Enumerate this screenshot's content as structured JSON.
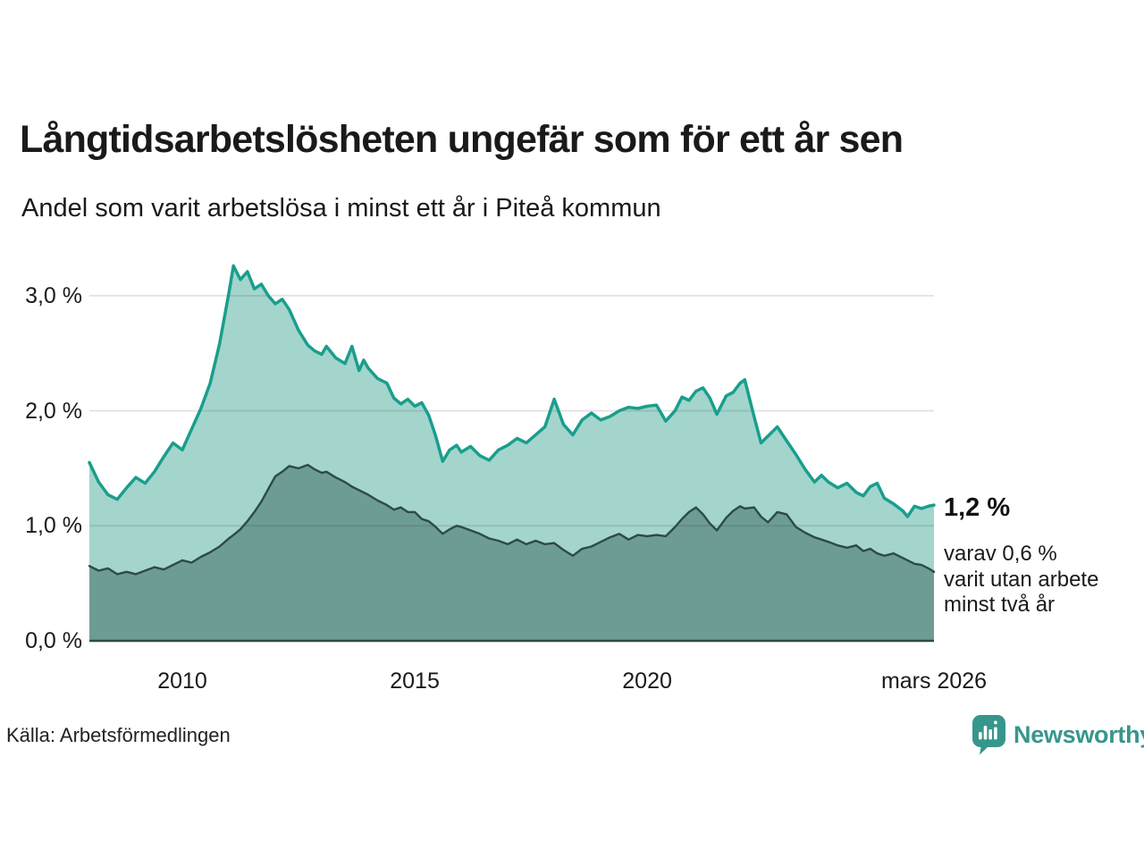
{
  "header": {
    "title": "Långtidsarbetslösheten ungefär som för ett år sen",
    "subtitle": "Andel som varit arbetslösa i minst ett år i Piteå kommun"
  },
  "annotation": {
    "value_label": "1,2 %",
    "detail": "varav 0,6 %\nvarit utan arbete\nminst två år"
  },
  "footer": {
    "source": "Källa: Arbetsförmedlingen",
    "brand": "Newsworthy"
  },
  "colors": {
    "line_total": "#1a9e8c",
    "fill_total": "#a3d5cd",
    "line_two_years": "#2d4b46",
    "fill_two_years": "#6d9c94",
    "grid": "rgba(30,30,30,0.13)",
    "text": "#1a1a1a",
    "brand": "#37968c"
  },
  "chart_data": {
    "type": "area",
    "title": "Långtidsarbetslösheten ungefär som för ett år sen",
    "subtitle": "Andel som varit arbetslösa i minst ett år i Piteå kommun",
    "xlabel": "",
    "ylabel": "",
    "unit": "%",
    "ylim": [
      0,
      3.4
    ],
    "xlim": [
      2008,
      2026.17
    ],
    "grid": true,
    "legend_position": "none",
    "y_ticks": [
      {
        "label": "0,0 %",
        "value": 0
      },
      {
        "label": "1,0 %",
        "value": 1
      },
      {
        "label": "2,0 %",
        "value": 2
      },
      {
        "label": "3,0 %",
        "value": 3
      }
    ],
    "x_ticks": [
      {
        "label": "2010",
        "year": 2010
      },
      {
        "label": "2015",
        "year": 2015
      },
      {
        "label": "2020",
        "year": 2020
      },
      {
        "label": "mars 2026",
        "year": 2026.17
      }
    ],
    "x": [
      2008.0,
      2008.2,
      2008.4,
      2008.6,
      2008.8,
      2009.0,
      2009.2,
      2009.4,
      2009.6,
      2009.8,
      2010.0,
      2010.2,
      2010.4,
      2010.6,
      2010.8,
      2011.0,
      2011.1,
      2011.25,
      2011.4,
      2011.55,
      2011.7,
      2011.85,
      2012.0,
      2012.15,
      2012.3,
      2012.5,
      2012.7,
      2012.85,
      2013.0,
      2013.1,
      2013.3,
      2013.5,
      2013.65,
      2013.8,
      2013.9,
      2014.0,
      2014.2,
      2014.4,
      2014.55,
      2014.7,
      2014.85,
      2015.0,
      2015.15,
      2015.3,
      2015.45,
      2015.6,
      2015.75,
      2015.9,
      2016.0,
      2016.2,
      2016.4,
      2016.6,
      2016.8,
      2017.0,
      2017.2,
      2017.4,
      2017.6,
      2017.8,
      2018.0,
      2018.2,
      2018.4,
      2018.6,
      2018.8,
      2019.0,
      2019.2,
      2019.4,
      2019.6,
      2019.8,
      2020.0,
      2020.2,
      2020.4,
      2020.6,
      2020.75,
      2020.9,
      2021.05,
      2021.2,
      2021.35,
      2021.5,
      2021.7,
      2021.85,
      2022.0,
      2022.1,
      2022.3,
      2022.45,
      2022.6,
      2022.8,
      2023.0,
      2023.2,
      2023.4,
      2023.6,
      2023.75,
      2023.9,
      2024.1,
      2024.3,
      2024.5,
      2024.65,
      2024.8,
      2024.95,
      2025.1,
      2025.3,
      2025.5,
      2025.6,
      2025.75,
      2025.9,
      2026.05,
      2026.17
    ],
    "series": [
      {
        "name": "Arbetslösa minst ett år",
        "end_value_pct": 1.2,
        "values": [
          1.55,
          1.38,
          1.27,
          1.23,
          1.33,
          1.42,
          1.37,
          1.47,
          1.6,
          1.72,
          1.66,
          1.84,
          2.02,
          2.24,
          2.58,
          3.02,
          3.26,
          3.14,
          3.21,
          3.06,
          3.1,
          3.0,
          2.93,
          2.97,
          2.88,
          2.7,
          2.57,
          2.52,
          2.49,
          2.56,
          2.46,
          2.41,
          2.56,
          2.35,
          2.44,
          2.37,
          2.28,
          2.24,
          2.11,
          2.06,
          2.1,
          2.04,
          2.07,
          1.96,
          1.78,
          1.56,
          1.66,
          1.7,
          1.64,
          1.69,
          1.61,
          1.57,
          1.66,
          1.7,
          1.76,
          1.72,
          1.79,
          1.86,
          2.1,
          1.88,
          1.79,
          1.92,
          1.98,
          1.92,
          1.95,
          2.0,
          2.03,
          2.02,
          2.04,
          2.05,
          1.91,
          2.0,
          2.12,
          2.09,
          2.17,
          2.2,
          2.11,
          1.97,
          2.13,
          2.16,
          2.24,
          2.27,
          1.95,
          1.72,
          1.78,
          1.86,
          1.74,
          1.62,
          1.49,
          1.38,
          1.44,
          1.38,
          1.33,
          1.37,
          1.29,
          1.26,
          1.34,
          1.37,
          1.24,
          1.19,
          1.13,
          1.08,
          1.17,
          1.15,
          1.17,
          1.18
        ]
      },
      {
        "name": "varav utan arbete minst två år",
        "end_value_pct": 0.6,
        "values": [
          0.65,
          0.61,
          0.63,
          0.58,
          0.6,
          0.58,
          0.61,
          0.64,
          0.62,
          0.66,
          0.7,
          0.68,
          0.73,
          0.77,
          0.82,
          0.89,
          0.92,
          0.97,
          1.04,
          1.12,
          1.21,
          1.32,
          1.43,
          1.47,
          1.52,
          1.5,
          1.53,
          1.49,
          1.46,
          1.47,
          1.42,
          1.38,
          1.34,
          1.31,
          1.29,
          1.27,
          1.22,
          1.18,
          1.14,
          1.16,
          1.12,
          1.12,
          1.06,
          1.04,
          0.99,
          0.93,
          0.97,
          1.0,
          0.99,
          0.96,
          0.93,
          0.89,
          0.87,
          0.84,
          0.88,
          0.84,
          0.87,
          0.84,
          0.85,
          0.79,
          0.74,
          0.8,
          0.82,
          0.86,
          0.9,
          0.93,
          0.88,
          0.92,
          0.91,
          0.92,
          0.91,
          0.99,
          1.06,
          1.12,
          1.16,
          1.1,
          1.02,
          0.96,
          1.07,
          1.13,
          1.17,
          1.15,
          1.16,
          1.08,
          1.03,
          1.12,
          1.1,
          0.99,
          0.94,
          0.9,
          0.88,
          0.86,
          0.83,
          0.81,
          0.83,
          0.78,
          0.8,
          0.76,
          0.74,
          0.76,
          0.72,
          0.7,
          0.67,
          0.66,
          0.63,
          0.6
        ]
      }
    ]
  }
}
